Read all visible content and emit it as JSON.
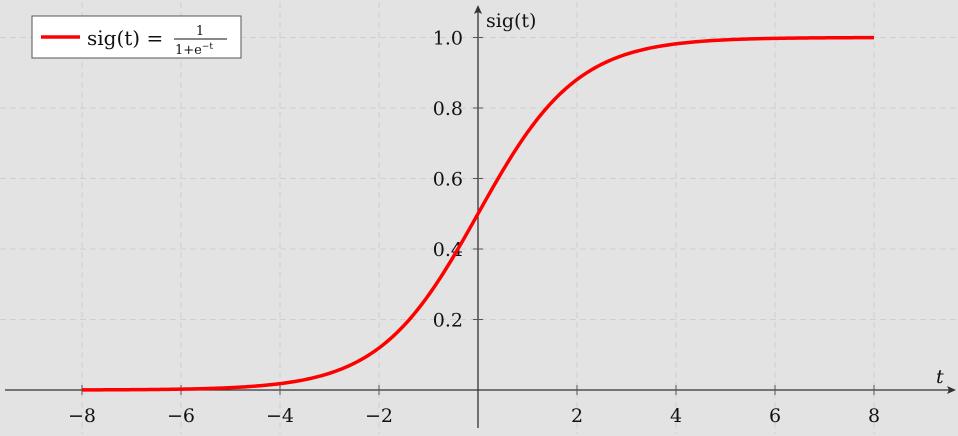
{
  "chart_data": {
    "type": "line",
    "function": "sig(t) = 1/(1+e^-t)",
    "xlabel": "t",
    "ylabel": "sig(t)",
    "xlim": [
      -9.6,
      9.6
    ],
    "ylim": [
      0,
      1.1
    ],
    "x_ticks": [
      -8,
      -6,
      -4,
      -2,
      2,
      4,
      6,
      8
    ],
    "x_tick_labels": [
      "−8",
      "−6",
      "−4",
      "−2",
      "2",
      "4",
      "6",
      "8"
    ],
    "y_ticks": [
      0.2,
      0.4,
      0.6,
      0.8,
      1.0
    ],
    "y_tick_labels": [
      "0.2",
      "0.4",
      "0.6",
      "0.8",
      "1.0"
    ],
    "x_domain": [
      -8,
      8
    ],
    "grid": true,
    "legend_position": "top-left",
    "series": [
      {
        "name": "sig(t) = 1/(1+e^−t)",
        "color": "#ff0000"
      }
    ],
    "legend": {
      "lhs": "sig(t) =",
      "numerator": "1",
      "denominator": "1+e",
      "exponent": "−t"
    },
    "background": "#e3e3e3"
  }
}
